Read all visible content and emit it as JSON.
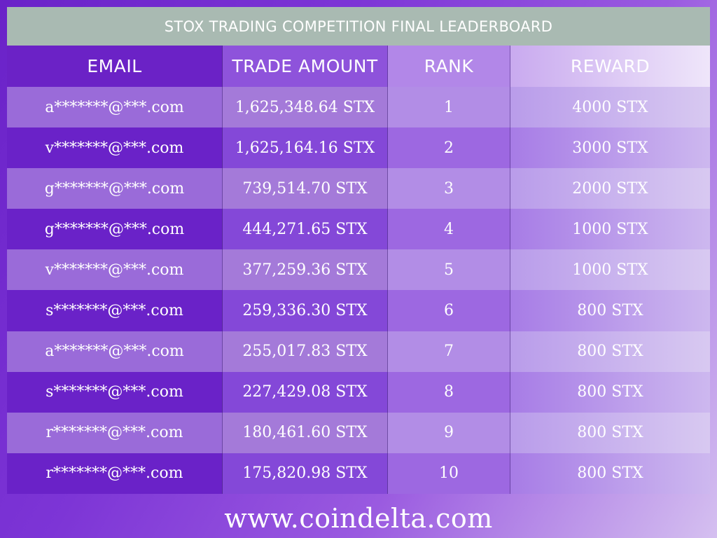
{
  "title": "STOX TRADING COMPETITION FINAL LEADERBOARD",
  "columns": {
    "email": "EMAIL",
    "trade_amount": "TRADE AMOUNT",
    "rank": "RANK",
    "reward": "REWARD"
  },
  "rows": [
    {
      "email": "a*******@***.com",
      "trade_amount": "1,625,348.64 STX",
      "rank": "1",
      "reward": "4000 STX"
    },
    {
      "email": "v*******@***.com",
      "trade_amount": "1,625,164.16 STX",
      "rank": "2",
      "reward": "3000 STX"
    },
    {
      "email": "g*******@***.com",
      "trade_amount": "739,514.70 STX",
      "rank": "3",
      "reward": "2000 STX"
    },
    {
      "email": "g*******@***.com",
      "trade_amount": "444,271.65 STX",
      "rank": "4",
      "reward": "1000 STX"
    },
    {
      "email": "v*******@***.com",
      "trade_amount": "377,259.36 STX",
      "rank": "5",
      "reward": "1000 STX"
    },
    {
      "email": "s*******@***.com",
      "trade_amount": "259,336.30 STX",
      "rank": "6",
      "reward": "800 STX"
    },
    {
      "email": "a*******@***.com",
      "trade_amount": "255,017.83 STX",
      "rank": "7",
      "reward": "800 STX"
    },
    {
      "email": "s*******@***.com",
      "trade_amount": "227,429.08 STX",
      "rank": "8",
      "reward": "800 STX"
    },
    {
      "email": "r*******@***.com",
      "trade_amount": "180,461.60 STX",
      "rank": "9",
      "reward": "800 STX"
    },
    {
      "email": "r*******@***.com",
      "trade_amount": "175,820.98 STX",
      "rank": "10",
      "reward": "800 STX"
    }
  ],
  "footer": {
    "website": "www.coindelta.com"
  },
  "colors": {
    "title_bar": "#a9bab2",
    "primary_purple": "#6a22c8",
    "text": "#ffffff"
  }
}
